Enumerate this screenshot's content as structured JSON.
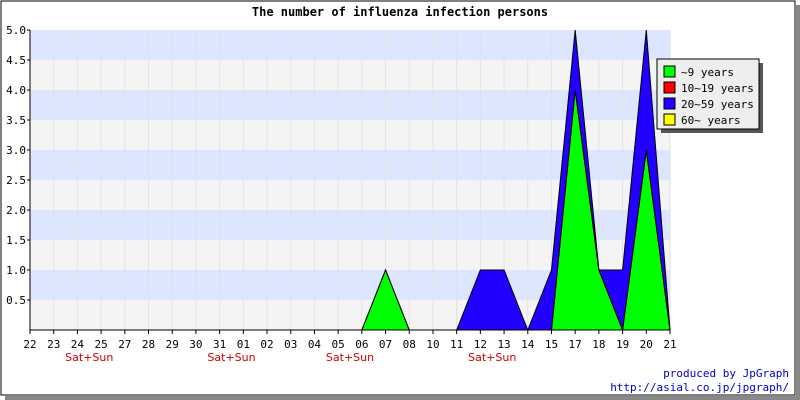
{
  "chart_data": {
    "type": "area",
    "title": "The number of influenza infection persons",
    "x": [
      "22",
      "23",
      "24",
      "25",
      "27",
      "28",
      "29",
      "30",
      "31",
      "01",
      "02",
      "03",
      "04",
      "05",
      "06",
      "07",
      "08",
      "10",
      "11",
      "12",
      "13",
      "14",
      "15",
      "17",
      "18",
      "19",
      "20",
      "21"
    ],
    "weekend_markers": [
      {
        "x": "24",
        "label": "Sat+Sun"
      },
      {
        "x": "31",
        "label": "Sat+Sun"
      },
      {
        "x": "05",
        "label": "Sat+Sun"
      },
      {
        "x": "12",
        "label": "Sat+Sun"
      }
    ],
    "series": [
      {
        "name": "~9 years",
        "color": "#00ff00",
        "values": [
          0,
          0,
          0,
          0,
          0,
          0,
          0,
          0,
          0,
          0,
          0,
          0,
          0,
          0,
          0,
          1,
          0,
          0,
          0,
          0,
          0,
          0,
          0,
          4,
          1,
          0,
          3,
          0
        ]
      },
      {
        "name": "10~19 years",
        "color": "#ff0000",
        "values": [
          0,
          0,
          0,
          0,
          0,
          0,
          0,
          0,
          0,
          0,
          0,
          0,
          0,
          0,
          0,
          0,
          0,
          0,
          0,
          0,
          0,
          0,
          0,
          0,
          0,
          0,
          0,
          0
        ]
      },
      {
        "name": "20~59 years",
        "color": "#2200ff",
        "values": [
          0,
          0,
          0,
          0,
          0,
          0,
          0,
          0,
          0,
          0,
          0,
          0,
          0,
          0,
          0,
          0,
          0,
          0,
          0,
          1,
          1,
          0,
          1,
          1,
          0,
          1,
          2,
          0
        ]
      },
      {
        "name": "60~ years",
        "color": "#ffff00",
        "values": [
          0,
          0,
          0,
          0,
          0,
          0,
          0,
          0,
          0,
          0,
          0,
          0,
          0,
          0,
          0,
          0,
          0,
          0,
          0,
          0,
          0,
          0,
          0,
          0,
          0,
          0,
          0,
          0
        ]
      }
    ],
    "stacked": true,
    "ylim": [
      0,
      5
    ],
    "yticks": [
      "0.5",
      "1.0",
      "1.5",
      "2.0",
      "2.5",
      "3.0",
      "3.5",
      "4.0",
      "4.5",
      "5.0"
    ],
    "grid": true,
    "legend_position": "top-right"
  },
  "credits": {
    "line1": "produced by JpGraph",
    "line2": "http://asial.co.jp/jpgraph/"
  },
  "colors": {
    "band_blue": "#dde6ff",
    "band_grey": "#f4f4f4",
    "weekend_label": "#cc0000",
    "credit_text": "#0000cc"
  }
}
